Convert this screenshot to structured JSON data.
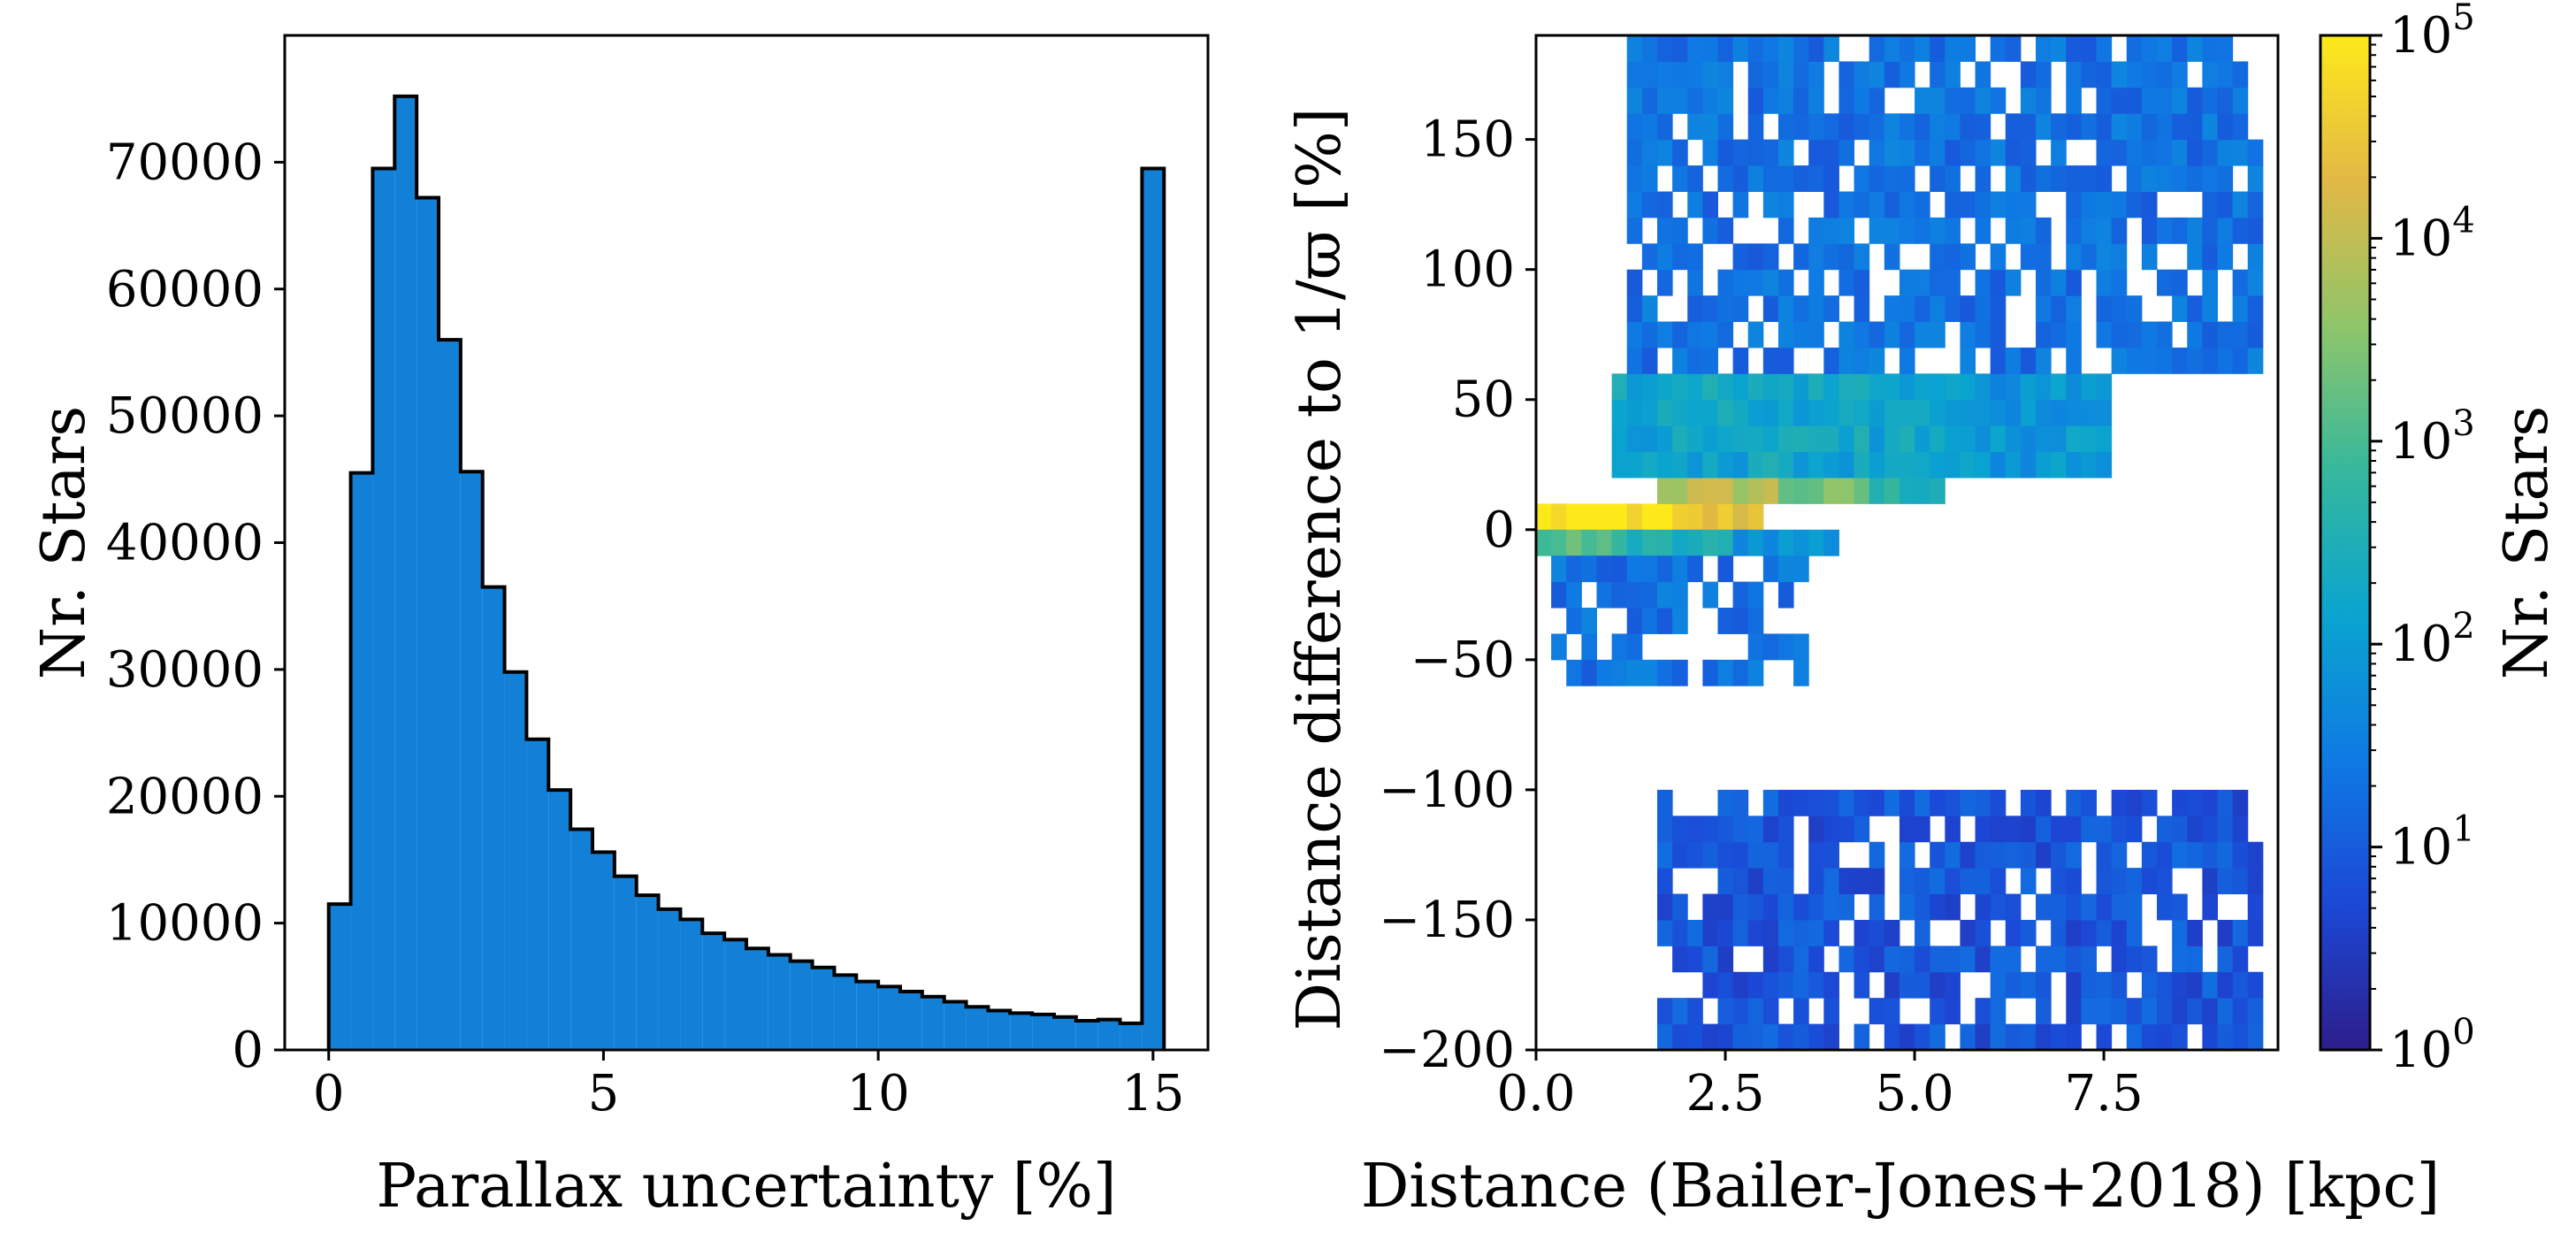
{
  "chart_data": [
    {
      "type": "bar",
      "subtype": "histogram",
      "xlabel": "Parallax uncertainty [%]",
      "ylabel": "Nr. Stars",
      "xlim": [
        -0.8,
        16
      ],
      "ylim": [
        0,
        80000
      ],
      "xticks": [
        0,
        5,
        10,
        15
      ],
      "yticks": [
        0,
        10000,
        20000,
        30000,
        40000,
        50000,
        60000,
        70000
      ],
      "bin_width": 0.4,
      "bin_starts": [
        0.0,
        0.4,
        0.8,
        1.2,
        1.6,
        2.0,
        2.4,
        2.8,
        3.2,
        3.6,
        4.0,
        4.4,
        4.8,
        5.2,
        5.6,
        6.0,
        6.4,
        6.8,
        7.2,
        7.6,
        8.0,
        8.4,
        8.8,
        9.2,
        9.6,
        10.0,
        10.4,
        10.8,
        11.2,
        11.6,
        12.0,
        12.4,
        12.8,
        13.2,
        13.6,
        14.0,
        14.4,
        14.8
      ],
      "values": [
        11500,
        45500,
        69500,
        75200,
        67200,
        56000,
        45600,
        36500,
        29800,
        24500,
        20500,
        17400,
        15600,
        13700,
        12200,
        11100,
        10300,
        9200,
        8700,
        8000,
        7500,
        7000,
        6500,
        5900,
        5400,
        5000,
        4600,
        4200,
        3800,
        3400,
        3100,
        2900,
        2800,
        2600,
        2300,
        2400,
        2100,
        69500
      ],
      "last_bin_end": 15.2,
      "fill_color": "#1380d8",
      "edge_color": "#000000"
    },
    {
      "type": "heatmap",
      "xlabel": "Distance (Bailer-Jones+2018) [kpc]",
      "ylabel": "Distance difference to 1/ϖ [%]",
      "xlim": [
        0,
        9.8
      ],
      "ylim": [
        -200,
        190
      ],
      "xticks": [
        "0.0",
        "2.5",
        "5.0",
        "7.5"
      ],
      "yticks": [
        -200,
        -150,
        -100,
        -50,
        0,
        50,
        100,
        150
      ],
      "colorbar": {
        "label": "Nr. Stars",
        "scale": "log",
        "range": [
          1,
          100000
        ],
        "ticks": [
          {
            "base": "10",
            "exp": "0"
          },
          {
            "base": "10",
            "exp": "1"
          },
          {
            "base": "10",
            "exp": "2"
          },
          {
            "base": "10",
            "exp": "3"
          },
          {
            "base": "10",
            "exp": "4"
          },
          {
            "base": "10",
            "exp": "5"
          }
        ],
        "colormap": [
          "#2d1e8c",
          "#1b48d6",
          "#0f7ae3",
          "#0aa4cf",
          "#36b89c",
          "#8fc56a",
          "#e2b845",
          "#fde91a"
        ]
      },
      "bin_width_x": 0.2,
      "bin_height_y": 10,
      "density_regions": [
        {
          "x": [
            0.0,
            1.8
          ],
          "y": [
            0,
            10
          ],
          "log_count": 4.9
        },
        {
          "x": [
            1.8,
            3.0
          ],
          "y": [
            0,
            10
          ],
          "log_count": 4.4
        },
        {
          "x": [
            1.6,
            3.2
          ],
          "y": [
            10,
            20
          ],
          "log_count": 3.9
        },
        {
          "x": [
            3.2,
            4.4
          ],
          "y": [
            10,
            20
          ],
          "log_count": 3.3
        },
        {
          "x": [
            4.4,
            5.4
          ],
          "y": [
            10,
            20
          ],
          "log_count": 2.6
        },
        {
          "x": [
            0.0,
            1.2
          ],
          "y": [
            -10,
            0
          ],
          "log_count": 3.0
        },
        {
          "x": [
            1.2,
            2.6
          ],
          "y": [
            -10,
            0
          ],
          "log_count": 2.4
        },
        {
          "x": [
            2.6,
            4.0
          ],
          "y": [
            -10,
            0
          ],
          "log_count": 1.9
        },
        {
          "x": [
            1.0,
            5.6
          ],
          "y": [
            20,
            60
          ],
          "log_count": 2.2
        },
        {
          "x": [
            5.6,
            7.6
          ],
          "y": [
            20,
            60
          ],
          "log_count": 1.9
        },
        {
          "x": [
            1.2,
            9.6
          ],
          "y": [
            60,
            190
          ],
          "log_count": 1.3
        },
        {
          "x": [
            0.2,
            3.6
          ],
          "y": [
            -60,
            -10
          ],
          "log_count": 1.3
        },
        {
          "x": [
            1.6,
            9.6
          ],
          "y": [
            -200,
            -100
          ],
          "log_count": 0.9
        }
      ]
    }
  ]
}
